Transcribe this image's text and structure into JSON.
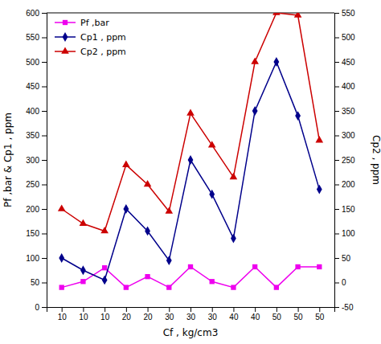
{
  "chart_data": {
    "type": "line",
    "xlabel": "Cf , kg/cm3",
    "ylabel": "Pf ,bar & Cp1 , ppm",
    "y2label": "Cp2 , ppm",
    "categories": [
      "10",
      "10",
      "10",
      "20",
      "20",
      "30",
      "30",
      "30",
      "40",
      "40",
      "50",
      "50",
      "50"
    ],
    "series": [
      {
        "name": "Pf ,bar",
        "color": "#ee00ee",
        "marker": "square",
        "values": [
          40,
          52,
          80,
          40,
          62,
          40,
          82,
          52,
          40,
          82,
          40,
          82,
          82
        ]
      },
      {
        "name": "Cp1 , ppm",
        "color": "#00008b",
        "marker": "diamond",
        "values": [
          100,
          75,
          55,
          200,
          155,
          95,
          300,
          230,
          140,
          400,
          500,
          390,
          240
        ]
      },
      {
        "name": "Cp2 , ppm",
        "color": "#cc0000",
        "marker": "triangle",
        "axis": "y2",
        "values": [
          150,
          120,
          105,
          240,
          200,
          145,
          345,
          280,
          215,
          450,
          550,
          545,
          290
        ]
      }
    ],
    "ylim": [
      0,
      600
    ],
    "yticks": [
      0,
      50,
      100,
      150,
      200,
      250,
      300,
      350,
      400,
      450,
      500,
      550,
      600
    ],
    "y2lim": [
      -50,
      550
    ],
    "y2ticks": [
      -50,
      0,
      50,
      100,
      150,
      200,
      250,
      300,
      350,
      400,
      450,
      500,
      550
    ],
    "legend": "upper-left",
    "grid": false
  }
}
